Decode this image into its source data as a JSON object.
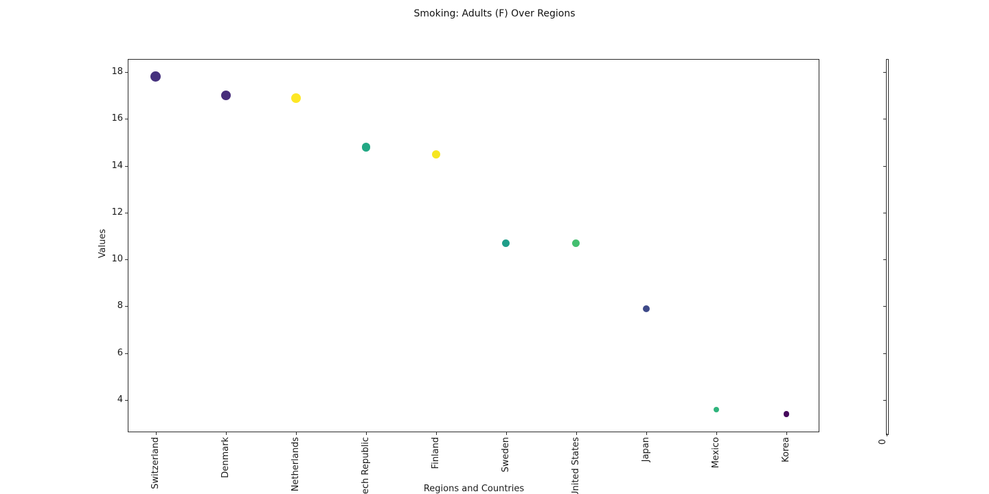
{
  "chart_data": {
    "type": "scatter",
    "title": "Smoking: Adults (F) Over Regions",
    "xlabel": "Regions and Countries",
    "ylabel": "Values",
    "categories": [
      "Switzerland",
      "Denmark",
      "Netherlands",
      "Czech Republic",
      "Finland",
      "Sweden",
      "United States",
      "Japan",
      "Mexico",
      "Korea"
    ],
    "values": [
      17.8,
      17.0,
      16.9,
      14.8,
      14.5,
      10.7,
      10.7,
      7.9,
      3.6,
      3.4
    ],
    "point_colors": [
      "#46327e",
      "#472d7b",
      "#fde725",
      "#22a884",
      "#f6e620",
      "#1f9e89",
      "#44bf70",
      "#3e4a89",
      "#2fb47c",
      "#46085c"
    ],
    "point_diameters": [
      15,
      14.5,
      14,
      12.5,
      12,
      11,
      11,
      10.5,
      8,
      8.5
    ],
    "yticks": [
      4,
      6,
      8,
      10,
      12,
      14,
      16,
      18
    ],
    "ytick_labels": [
      "4",
      "6",
      "8",
      "10",
      "12",
      "14",
      "16",
      "18"
    ],
    "ylim": [
      2.62,
      18.56
    ],
    "grid": false,
    "legend": "none",
    "frame_color": "#2b2b2b",
    "background": "#ffffff"
  },
  "right_axis": {
    "xtick_label": "0"
  }
}
